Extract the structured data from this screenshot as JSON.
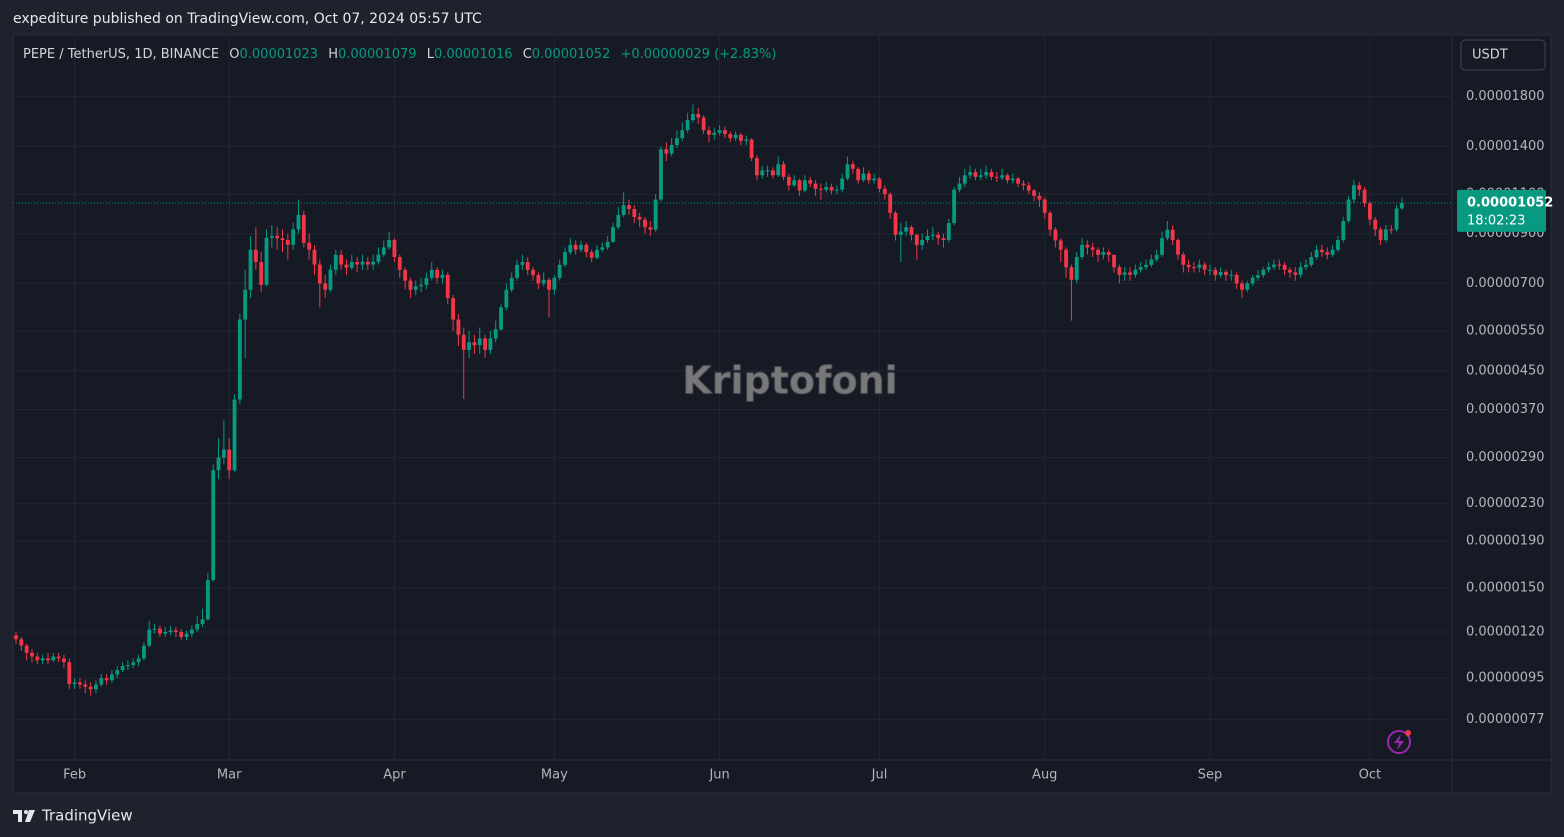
{
  "page": {
    "publish_note": "expediture published on TradingView.com, Oct 07, 2024 05:57 UTC",
    "legend": {
      "symbol": "PEPE / TetherUS, 1D, BINANCE",
      "open_label": "O",
      "open": "0.00001023",
      "high_label": "H",
      "high": "0.00001079",
      "low_label": "L",
      "low": "0.00001016",
      "close_label": "C",
      "close": "0.00001052",
      "change": "+0.00000029 (+2.83%)"
    },
    "currency": "USDT",
    "price_label": {
      "price": "0.00001052",
      "countdown": "18:02:23"
    },
    "watermark": "Kriptofoni",
    "footer_brand": "TradingView"
  },
  "chart_data": {
    "type": "candlestick",
    "log_scale": true,
    "grid": true,
    "up_color": "#089981",
    "down_color": "#f23645",
    "xlim": [
      -0.56,
      269.4
    ],
    "xticks": [
      {
        "value": 11,
        "label": "Feb"
      },
      {
        "value": 40,
        "label": "Mar"
      },
      {
        "value": 71,
        "label": "Apr"
      },
      {
        "value": 101,
        "label": "May"
      },
      {
        "value": 132,
        "label": "Jun"
      },
      {
        "value": 162,
        "label": "Jul"
      },
      {
        "value": 193,
        "label": "Aug"
      },
      {
        "value": 224,
        "label": "Sep"
      },
      {
        "value": 254,
        "label": "Oct"
      }
    ],
    "ylim": [
      6.28e-07,
      2.46e-05
    ],
    "yticks": [
      {
        "value": 1.8e-05,
        "label": "0.00001800"
      },
      {
        "value": 1.4e-05,
        "label": "0.00001400"
      },
      {
        "value": 1.1e-05,
        "label": "0.00001100"
      },
      {
        "value": 9e-06,
        "label": "0.00000900"
      },
      {
        "value": 7e-06,
        "label": "0.00000700"
      },
      {
        "value": 5.5e-06,
        "label": "0.00000550"
      },
      {
        "value": 4.5e-06,
        "label": "0.00000450"
      },
      {
        "value": 3.7e-06,
        "label": "0.00000370"
      },
      {
        "value": 2.9e-06,
        "label": "0.00000290"
      },
      {
        "value": 2.3e-06,
        "label": "0.00000230"
      },
      {
        "value": 1.9e-06,
        "label": "0.00000190"
      },
      {
        "value": 1.5e-06,
        "label": "0.00000150"
      },
      {
        "value": 1.2e-06,
        "label": "0.00000120"
      },
      {
        "value": 9.5e-07,
        "label": "0.00000095"
      },
      {
        "value": 7.7e-07,
        "label": "0.00000077"
      }
    ],
    "open": [
      1.18e-06,
      1.157e-06,
      1.12e-06,
      1.08e-06,
      1.06e-06,
      1.04e-06,
      1.05e-06,
      1.04e-06,
      1.06e-06,
      1.05e-06,
      1.03e-06,
      9.22e-07,
      9.3e-07,
      9.2e-07,
      9.1e-07,
      8.98e-07,
      9.2e-07,
      9.5e-07,
      9.4e-07,
      9.68e-07,
      9.9e-07,
      1.01e-06,
      1.015e-06,
      1.03e-06,
      1.05e-06,
      1.12e-06,
      1.215e-06,
      1.22e-06,
      1.19e-06,
      1.2e-06,
      1.21e-06,
      1.2e-06,
      1.17e-06,
      1.19e-06,
      1.215e-06,
      1.25e-06,
      1.28e-06,
      1.56e-06,
      2.72e-06,
      2.9e-06,
      3.02e-06,
      2.72e-06,
      3.89e-06,
      5.83e-06,
      6.78e-06,
      8.3e-06,
      7.8e-06,
      6.95e-06,
      8.82e-06,
      8.9e-06,
      8.8e-06,
      8.72e-06,
      8.51e-06,
      9.2e-06,
      9.9e-06,
      8.6e-06,
      8.3e-06,
      7.7e-06,
      7e-06,
      6.78e-06,
      7.5e-06,
      8.09e-06,
      7.7e-06,
      7.58e-06,
      7.8e-06,
      7.7e-06,
      7.81e-06,
      7.7e-06,
      7.81e-06,
      8.1e-06,
      8.4e-06,
      8.72e-06,
      8e-06,
      7.5e-06,
      7.1e-06,
      6.78e-06,
      6.9e-06,
      6.95e-06,
      7.2e-06,
      7.5e-06,
      7.2e-06,
      7.31e-06,
      6.5e-06,
      5.83e-06,
      5.4e-06,
      5e-06,
      5.2e-06,
      5.12e-06,
      5.3e-06,
      5e-06,
      5.3e-06,
      5.55e-06,
      6.2e-06,
      6.78e-06,
      7.2e-06,
      7.69e-06,
      7.8e-06,
      7.5e-06,
      7.3e-06,
      7e-06,
      7.13e-06,
      6.78e-06,
      7.2e-06,
      7.69e-06,
      8.2e-06,
      8.51e-06,
      8.3e-06,
      8.51e-06,
      8.2e-06,
      7.97e-06,
      8.3e-06,
      8.4e-06,
      8.64e-06,
      9.3e-06,
      9.9e-06,
      1.04e-05,
      1.02e-05,
      9.8e-06,
      9.67e-06,
      9.3e-06,
      9.19e-06,
      1.07e-05,
      1.38e-05,
      1.35e-05,
      1.41e-05,
      1.46e-05,
      1.52e-05,
      1.6e-05,
      1.65e-05,
      1.62e-05,
      1.52e-05,
      1.485e-05,
      1.5e-05,
      1.52e-05,
      1.49e-05,
      1.46e-05,
      1.485e-05,
      1.44e-05,
      1.45e-05,
      1.32e-05,
      1.21e-05,
      1.24e-05,
      1.24e-05,
      1.21e-05,
      1.28e-05,
      1.2e-05,
      1.15e-05,
      1.18e-05,
      1.12e-05,
      1.18e-05,
      1.16e-05,
      1.13e-05,
      1.125e-05,
      1.14e-05,
      1.12e-05,
      1.125e-05,
      1.19e-05,
      1.28e-05,
      1.25e-05,
      1.18e-05,
      1.22e-05,
      1.18e-05,
      1.19e-05,
      1.13e-05,
      1.1e-05,
      1e-05,
      8.95e-06,
      9.1e-06,
      9.3e-06,
      8.95e-06,
      8.5e-06,
      8.72e-06,
      8.9e-06,
      8.95e-06,
      8.8e-06,
      8.72e-06,
      9.5e-06,
      1.125e-05,
      1.16e-05,
      1.21e-05,
      1.23e-05,
      1.2e-05,
      1.21e-05,
      1.23e-05,
      1.2e-05,
      1.195e-05,
      1.21e-05,
      1.18e-05,
      1.19e-05,
      1.16e-05,
      1.15e-05,
      1.12e-05,
      1.09e-05,
      1.07e-05,
      1e-05,
      9.19e-06,
      8.7e-06,
      8.3e-06,
      7.6e-06,
      7.13e-06,
      8e-06,
      8.51e-06,
      8.4e-06,
      8.3e-06,
      8.09e-06,
      8.2e-06,
      8.09e-06,
      7.6e-06,
      7.31e-06,
      7.4e-06,
      7.31e-06,
      7.5e-06,
      7.6e-06,
      7.69e-06,
      7.9e-06,
      8.09e-06,
      8.8e-06,
      9.19e-06,
      8.72e-06,
      8.1e-06,
      7.69e-06,
      7.6e-06,
      7.58e-06,
      7.7e-06,
      7.5e-06,
      7.5e-06,
      7.3e-06,
      7.42e-06,
      7.3e-06,
      7.31e-06,
      7e-06,
      6.78e-06,
      7e-06,
      7.2e-06,
      7.3e-06,
      7.5e-06,
      7.6e-06,
      7.7e-06,
      7.69e-06,
      7.5e-06,
      7.4e-06,
      7.31e-06,
      7.6e-06,
      7.69e-06,
      8e-06,
      8.3e-06,
      8.2e-06,
      8.09e-06,
      8.3e-06,
      8.72e-06,
      9.6e-06,
      1.07e-05,
      1.15e-05,
      1.125e-05,
      1.05e-05,
      9.67e-06,
      9.2e-06,
      8.72e-06,
      9.2e-06,
      9.19e-06,
      1.023e-05
    ],
    "high": [
      1.2e-06,
      1.17e-06,
      1.13e-06,
      1.1e-06,
      1.08e-06,
      1.07e-06,
      1.08e-06,
      1.08e-06,
      1.08e-06,
      1.07e-06,
      1.05e-06,
      9.5e-07,
      9.5e-07,
      9.4e-07,
      9.3e-07,
      9.4e-07,
      9.7e-07,
      9.7e-07,
      9.9e-07,
      1.01e-06,
      1.03e-06,
      1.04e-06,
      1.05e-06,
      1.07e-06,
      1.14e-06,
      1.27e-06,
      1.25e-06,
      1.24e-06,
      1.23e-06,
      1.24e-06,
      1.23e-06,
      1.22e-06,
      1.21e-06,
      1.24e-06,
      1.3e-06,
      1.35e-06,
      1.62e-06,
      2.8e-06,
      3.2e-06,
      3.5e-06,
      3.2e-06,
      4e-06,
      6e-06,
      7.5e-06,
      8.9e-06,
      9.3e-06,
      8.2e-06,
      9.2e-06,
      9.4e-06,
      9.3e-06,
      9.2e-06,
      9e-06,
      9.5e-06,
      1.07e-05,
      1.01e-05,
      9e-06,
      8.5e-06,
      7.9e-06,
      7.3e-06,
      7.7e-06,
      8.3e-06,
      8.3e-06,
      7.9e-06,
      8.1e-06,
      8e-06,
      8.1e-06,
      8e-06,
      8.1e-06,
      8.4e-06,
      8.7e-06,
      9.1e-06,
      8.8e-06,
      8.1e-06,
      7.6e-06,
      7.2e-06,
      7.1e-06,
      7.2e-06,
      7.4e-06,
      7.8e-06,
      7.6e-06,
      7.5e-06,
      7.4e-06,
      6.6e-06,
      6e-06,
      5.6e-06,
      5.5e-06,
      5.4e-06,
      5.6e-06,
      5.4e-06,
      5.5e-06,
      5.8e-06,
      6.3e-06,
      7e-06,
      7.4e-06,
      7.9e-06,
      8.1e-06,
      8e-06,
      7.6e-06,
      7.4e-06,
      7.4e-06,
      7.2e-06,
      7.3e-06,
      7.9e-06,
      8.4e-06,
      8.8e-06,
      8.7e-06,
      8.7e-06,
      8.6e-06,
      8.3e-06,
      8.5e-06,
      8.6e-06,
      8.9e-06,
      9.5e-06,
      1.03e-05,
      1.11e-05,
      1.07e-05,
      1.04e-05,
      1e-05,
      9.8e-06,
      9.6e-06,
      1.1e-05,
      1.4e-05,
      1.43e-05,
      1.46e-05,
      1.52e-05,
      1.58e-05,
      1.66e-05,
      1.73e-05,
      1.7e-05,
      1.64e-05,
      1.55e-05,
      1.54e-05,
      1.56e-05,
      1.55e-05,
      1.51e-05,
      1.51e-05,
      1.5e-05,
      1.48e-05,
      1.46e-05,
      1.34e-05,
      1.27e-05,
      1.27e-05,
      1.26e-05,
      1.33e-05,
      1.3e-05,
      1.22e-05,
      1.21e-05,
      1.19e-05,
      1.21e-05,
      1.2e-05,
      1.18e-05,
      1.16e-05,
      1.17e-05,
      1.16e-05,
      1.15e-05,
      1.22e-05,
      1.33e-05,
      1.3e-05,
      1.26e-05,
      1.26e-05,
      1.24e-05,
      1.22e-05,
      1.2e-05,
      1.15e-05,
      1.11e-05,
      1.01e-05,
      9.5e-06,
      9.6e-06,
      9.4e-06,
      9e-06,
      9e-06,
      9.2e-06,
      9.3e-06,
      9.1e-06,
      9e-06,
      9.7e-06,
      1.14e-05,
      1.2e-05,
      1.25e-05,
      1.27e-05,
      1.25e-05,
      1.25e-05,
      1.27e-05,
      1.25e-05,
      1.23e-05,
      1.25e-05,
      1.22e-05,
      1.22e-05,
      1.2e-05,
      1.18e-05,
      1.17e-05,
      1.13e-05,
      1.11e-05,
      1.08e-05,
      1.01e-05,
      9.3e-06,
      8.8e-06,
      8.4e-06,
      7.7e-06,
      8.2e-06,
      8.8e-06,
      8.7e-06,
      8.6e-06,
      8.4e-06,
      8.4e-06,
      8.3e-06,
      8.1e-06,
      7.7e-06,
      7.6e-06,
      7.6e-06,
      7.7e-06,
      7.8e-06,
      7.9e-06,
      8.1e-06,
      8.3e-06,
      9.1e-06,
      9.6e-06,
      9.4e-06,
      8.8e-06,
      8.2e-06,
      7.9e-06,
      7.8e-06,
      7.9e-06,
      7.8e-06,
      7.7e-06,
      7.6e-06,
      7.6e-06,
      7.5e-06,
      7.5e-06,
      7.4e-06,
      7.1e-06,
      7.1e-06,
      7.3e-06,
      7.5e-06,
      7.6e-06,
      7.8e-06,
      7.9e-06,
      7.9e-06,
      7.8e-06,
      7.6e-06,
      7.6e-06,
      7.8e-06,
      7.9e-06,
      8.2e-06,
      8.5e-06,
      8.5e-06,
      8.4e-06,
      8.5e-06,
      8.9e-06,
      9.8e-06,
      1.09e-05,
      1.18e-05,
      1.17e-05,
      1.14e-05,
      1.06e-05,
      9.8e-06,
      9.3e-06,
      9.4e-06,
      9.4e-06,
      1.04e-05,
      1.079e-05
    ],
    "low": [
      1.13e-06,
      1.09e-06,
      1.04e-06,
      1.03e-06,
      1.02e-06,
      1.02e-06,
      1.02e-06,
      1.03e-06,
      1.03e-06,
      1e-06,
      9e-07,
      9e-07,
      9e-07,
      8.8e-07,
      8.7e-07,
      8.8e-07,
      9.1e-07,
      9.2e-07,
      9.3e-07,
      9.5e-07,
      9.8e-07,
      9.9e-07,
      1e-06,
      1.01e-06,
      1.04e-06,
      1.11e-06,
      1.19e-06,
      1.17e-06,
      1.17e-06,
      1.18e-06,
      1.17e-06,
      1.15e-06,
      1.15e-06,
      1.17e-06,
      1.2e-06,
      1.23e-06,
      1.27e-06,
      1.55e-06,
      2.6e-06,
      2.8e-06,
      2.6e-06,
      2.7e-06,
      3.8e-06,
      4.8e-06,
      6.5e-06,
      7.5e-06,
      6.7e-06,
      6.9e-06,
      8.4e-06,
      8.3e-06,
      8.2e-06,
      7.9e-06,
      8.3e-06,
      9e-06,
      8.4e-06,
      7.9e-06,
      7.3e-06,
      6.2e-06,
      6.5e-06,
      6.7e-06,
      7.3e-06,
      7.5e-06,
      7.3e-06,
      7.5e-06,
      7.4e-06,
      7.5e-06,
      7.5e-06,
      7.5e-06,
      7.7e-06,
      8e-06,
      8.3e-06,
      7.8e-06,
      7.2e-06,
      6.8e-06,
      6.5e-06,
      6.6e-06,
      6.7e-06,
      6.8e-06,
      7.1e-06,
      7e-06,
      7e-06,
      6.3e-06,
      5.5e-06,
      5.1e-06,
      3.9e-06,
      4.8e-06,
      4.9e-06,
      4.9e-06,
      4.8e-06,
      4.9e-06,
      5.2e-06,
      5.5e-06,
      6.1e-06,
      6.7e-06,
      7.1e-06,
      7.5e-06,
      7.3e-06,
      7.1e-06,
      6.8e-06,
      6.9e-06,
      5.9e-06,
      6.6e-06,
      7.1e-06,
      7.6e-06,
      8.1e-06,
      8.1e-06,
      8.2e-06,
      8e-06,
      7.8e-06,
      7.9e-06,
      8.2e-06,
      8.3e-06,
      8.6e-06,
      9.2e-06,
      9.8e-06,
      9.9e-06,
      9.5e-06,
      9.3e-06,
      9e-06,
      8.9e-06,
      9.1e-06,
      1.06e-05,
      1.3e-05,
      1.33e-05,
      1.39e-05,
      1.44e-05,
      1.5e-05,
      1.58e-05,
      1.57e-05,
      1.49e-05,
      1.43e-05,
      1.45e-05,
      1.48e-05,
      1.46e-05,
      1.43e-05,
      1.44e-05,
      1.41e-05,
      1.41e-05,
      1.3e-05,
      1.18e-05,
      1.19e-05,
      1.2e-05,
      1.19e-05,
      1.2e-05,
      1.18e-05,
      1.12e-05,
      1.14e-05,
      1.09e-05,
      1.11e-05,
      1.14e-05,
      1.09e-05,
      1.07e-05,
      1.11e-05,
      1.1e-05,
      1.1e-05,
      1.11e-05,
      1.18e-05,
      1.22e-05,
      1.16e-05,
      1.17e-05,
      1.16e-05,
      1.16e-05,
      1.11e-05,
      1.07e-05,
      9.7e-06,
      8.7e-06,
      7.8e-06,
      8.9e-06,
      8.7e-06,
      7.9e-06,
      8.3e-06,
      8.6e-06,
      8.7e-06,
      8.5e-06,
      8.4e-06,
      8.6e-06,
      9.4e-06,
      1.11e-05,
      1.14e-05,
      1.19e-05,
      1.18e-05,
      1.18e-05,
      1.19e-05,
      1.18e-05,
      1.17e-05,
      1.18e-05,
      1.16e-05,
      1.16e-05,
      1.14e-05,
      1.12e-05,
      1.1e-05,
      1.06e-05,
      1.03e-05,
      9.7e-06,
      8.9e-06,
      8.4e-06,
      7.8e-06,
      7.2e-06,
      5.8e-06,
      7e-06,
      7.9e-06,
      8.1e-06,
      8e-06,
      7.8e-06,
      7.9e-06,
      7.8e-06,
      7.4e-06,
      7e-06,
      7.1e-06,
      7.1e-06,
      7.2e-06,
      7.4e-06,
      7.5e-06,
      7.6e-06,
      7.8e-06,
      8e-06,
      8.7e-06,
      8.5e-06,
      7.9e-06,
      7.4e-06,
      7.4e-06,
      7.4e-06,
      7.4e-06,
      7.3e-06,
      7.3e-06,
      7.1e-06,
      7.2e-06,
      7.1e-06,
      7.1e-06,
      6.8e-06,
      6.5e-06,
      6.7e-06,
      6.9e-06,
      7.1e-06,
      7.2e-06,
      7.4e-06,
      7.5e-06,
      7.5e-06,
      7.3e-06,
      7.2e-06,
      7.1e-06,
      7.2e-06,
      7.5e-06,
      7.6e-06,
      7.9e-06,
      8e-06,
      7.9e-06,
      8e-06,
      8.2e-06,
      8.6e-06,
      9.5e-06,
      1.05e-05,
      1.09e-05,
      1.03e-05,
      9.4e-06,
      8.9e-06,
      8.5e-06,
      8.6e-06,
      9e-06,
      9.1e-06,
      1.016e-05
    ],
    "close": [
      1.157e-06,
      1.12e-06,
      1.08e-06,
      1.06e-06,
      1.04e-06,
      1.05e-06,
      1.04e-06,
      1.06e-06,
      1.05e-06,
      1.03e-06,
      9.22e-07,
      9.3e-07,
      9.2e-07,
      9.1e-07,
      8.98e-07,
      9.2e-07,
      9.5e-07,
      9.4e-07,
      9.68e-07,
      9.9e-07,
      1.01e-06,
      1.015e-06,
      1.03e-06,
      1.05e-06,
      1.12e-06,
      1.215e-06,
      1.22e-06,
      1.19e-06,
      1.2e-06,
      1.21e-06,
      1.2e-06,
      1.17e-06,
      1.19e-06,
      1.215e-06,
      1.25e-06,
      1.28e-06,
      1.56e-06,
      2.72e-06,
      2.9e-06,
      3.02e-06,
      2.72e-06,
      3.89e-06,
      5.83e-06,
      6.78e-06,
      8.3e-06,
      7.8e-06,
      6.95e-06,
      8.82e-06,
      8.9e-06,
      8.8e-06,
      8.72e-06,
      8.51e-06,
      9.2e-06,
      9.9e-06,
      8.6e-06,
      8.3e-06,
      7.7e-06,
      7e-06,
      6.78e-06,
      7.5e-06,
      8.09e-06,
      7.7e-06,
      7.58e-06,
      7.8e-06,
      7.7e-06,
      7.81e-06,
      7.7e-06,
      7.81e-06,
      8.1e-06,
      8.4e-06,
      8.72e-06,
      8e-06,
      7.5e-06,
      7.1e-06,
      6.78e-06,
      6.9e-06,
      6.95e-06,
      7.2e-06,
      7.5e-06,
      7.2e-06,
      7.31e-06,
      6.5e-06,
      5.83e-06,
      5.4e-06,
      5e-06,
      5.2e-06,
      5.12e-06,
      5.3e-06,
      5e-06,
      5.3e-06,
      5.55e-06,
      6.2e-06,
      6.78e-06,
      7.2e-06,
      7.69e-06,
      7.8e-06,
      7.5e-06,
      7.3e-06,
      7e-06,
      7.13e-06,
      6.78e-06,
      7.2e-06,
      7.69e-06,
      8.2e-06,
      8.51e-06,
      8.3e-06,
      8.51e-06,
      8.2e-06,
      7.97e-06,
      8.3e-06,
      8.4e-06,
      8.64e-06,
      9.3e-06,
      9.9e-06,
      1.04e-05,
      1.02e-05,
      9.8e-06,
      9.67e-06,
      9.3e-06,
      9.19e-06,
      1.07e-05,
      1.38e-05,
      1.35e-05,
      1.41e-05,
      1.46e-05,
      1.52e-05,
      1.6e-05,
      1.65e-05,
      1.62e-05,
      1.52e-05,
      1.485e-05,
      1.5e-05,
      1.52e-05,
      1.49e-05,
      1.46e-05,
      1.485e-05,
      1.44e-05,
      1.45e-05,
      1.32e-05,
      1.21e-05,
      1.24e-05,
      1.24e-05,
      1.21e-05,
      1.28e-05,
      1.2e-05,
      1.15e-05,
      1.18e-05,
      1.12e-05,
      1.18e-05,
      1.16e-05,
      1.13e-05,
      1.125e-05,
      1.14e-05,
      1.12e-05,
      1.125e-05,
      1.19e-05,
      1.28e-05,
      1.25e-05,
      1.18e-05,
      1.22e-05,
      1.18e-05,
      1.19e-05,
      1.13e-05,
      1.1e-05,
      1e-05,
      8.95e-06,
      9.1e-06,
      9.3e-06,
      8.95e-06,
      8.5e-06,
      8.72e-06,
      8.9e-06,
      8.95e-06,
      8.8e-06,
      8.72e-06,
      9.5e-06,
      1.125e-05,
      1.16e-05,
      1.21e-05,
      1.23e-05,
      1.2e-05,
      1.21e-05,
      1.23e-05,
      1.2e-05,
      1.195e-05,
      1.21e-05,
      1.18e-05,
      1.19e-05,
      1.16e-05,
      1.15e-05,
      1.12e-05,
      1.09e-05,
      1.07e-05,
      1e-05,
      9.19e-06,
      8.7e-06,
      8.3e-06,
      7.6e-06,
      7.13e-06,
      8e-06,
      8.51e-06,
      8.4e-06,
      8.3e-06,
      8.09e-06,
      8.2e-06,
      8.09e-06,
      7.6e-06,
      7.31e-06,
      7.4e-06,
      7.31e-06,
      7.5e-06,
      7.6e-06,
      7.69e-06,
      7.9e-06,
      8.09e-06,
      8.8e-06,
      9.19e-06,
      8.72e-06,
      8.1e-06,
      7.69e-06,
      7.6e-06,
      7.58e-06,
      7.7e-06,
      7.5e-06,
      7.5e-06,
      7.3e-06,
      7.42e-06,
      7.3e-06,
      7.31e-06,
      7e-06,
      6.78e-06,
      7e-06,
      7.2e-06,
      7.3e-06,
      7.5e-06,
      7.6e-06,
      7.7e-06,
      7.69e-06,
      7.5e-06,
      7.4e-06,
      7.31e-06,
      7.6e-06,
      7.69e-06,
      8e-06,
      8.3e-06,
      8.2e-06,
      8.09e-06,
      8.3e-06,
      8.72e-06,
      9.6e-06,
      1.07e-05,
      1.15e-05,
      1.125e-05,
      1.05e-05,
      9.67e-06,
      9.2e-06,
      8.72e-06,
      9.2e-06,
      9.19e-06,
      1.023e-05,
      1.052e-05
    ]
  }
}
